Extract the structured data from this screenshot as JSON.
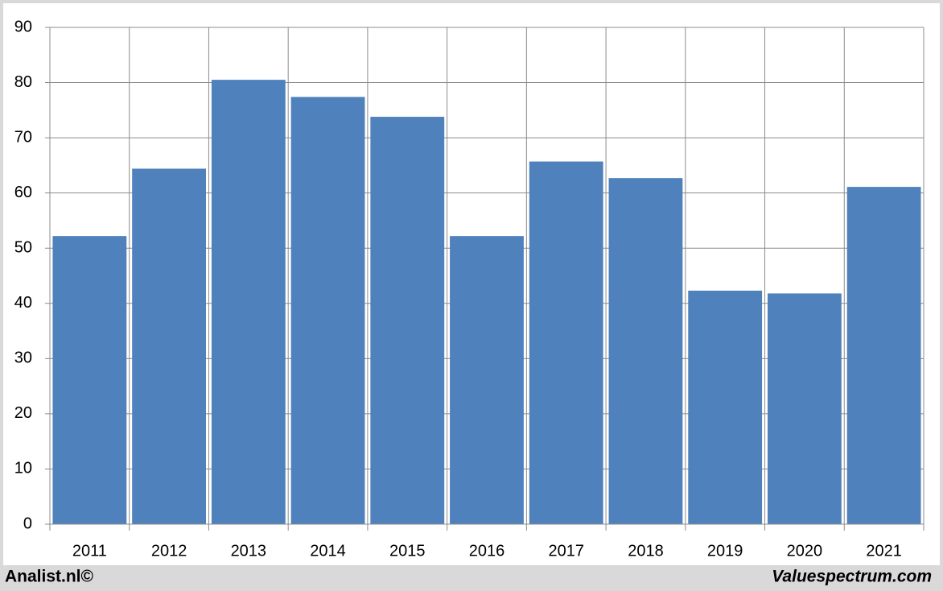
{
  "chart_data": {
    "type": "bar",
    "categories": [
      "2011",
      "2012",
      "2013",
      "2014",
      "2015",
      "2016",
      "2017",
      "2018",
      "2019",
      "2020",
      "2021"
    ],
    "values": [
      52.2,
      64.4,
      80.5,
      77.4,
      73.8,
      52.2,
      65.7,
      62.7,
      42.3,
      41.8,
      61.1
    ],
    "color": "#4f81bd",
    "ylim": [
      0,
      90
    ],
    "yticks": [
      0,
      10,
      20,
      30,
      40,
      50,
      60,
      70,
      80,
      90
    ],
    "grid": true,
    "footer_left": "Analist.nl©",
    "footer_right": "Valuespectrum.com"
  }
}
